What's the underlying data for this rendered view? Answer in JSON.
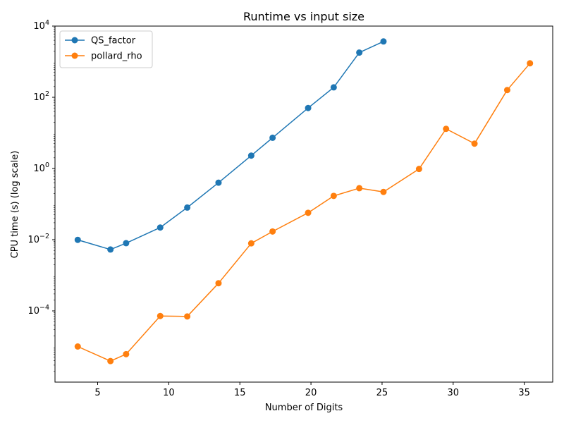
{
  "chart_data": {
    "type": "line",
    "title": "Runtime vs input size",
    "xlabel": "Number of Digits",
    "ylabel": "CPU time (s) (log scale)",
    "xlim": [
      2.0,
      37.0
    ],
    "ylim": [
      1e-06,
      10000.0
    ],
    "yscale": "log",
    "grid": false,
    "legend_position": "top-left",
    "x_ticks": [
      5,
      10,
      15,
      20,
      25,
      30,
      35
    ],
    "x_tick_labels": [
      "5",
      "10",
      "15",
      "20",
      "25",
      "30",
      "35"
    ],
    "y_ticks": [
      -4,
      -2,
      0,
      2,
      4
    ],
    "series": [
      {
        "name": "QS_factor",
        "color": "#1f77b4",
        "marker": "circle",
        "x": [
          3.6,
          5.9,
          7.0,
          9.4,
          11.3,
          13.5,
          15.8,
          17.3,
          19.8,
          21.6,
          23.4,
          25.1
        ],
        "y": [
          0.0099,
          0.0053,
          0.008,
          0.022,
          0.08,
          0.4,
          2.3,
          7.3,
          50,
          190,
          1800,
          3700
        ]
      },
      {
        "name": "pollard_rho",
        "color": "#ff7f0e",
        "marker": "circle",
        "x": [
          3.6,
          5.9,
          7.0,
          9.4,
          11.3,
          13.5,
          15.8,
          17.3,
          19.8,
          21.6,
          23.4,
          25.1,
          27.6,
          29.5,
          31.5,
          33.8,
          35.4
        ],
        "y": [
          1e-05,
          3.9e-06,
          6.1e-06,
          7.2e-05,
          7e-05,
          0.0006,
          0.0079,
          0.017,
          0.057,
          0.17,
          0.28,
          0.22,
          0.97,
          13.0,
          5.0,
          160,
          900
        ]
      }
    ]
  }
}
